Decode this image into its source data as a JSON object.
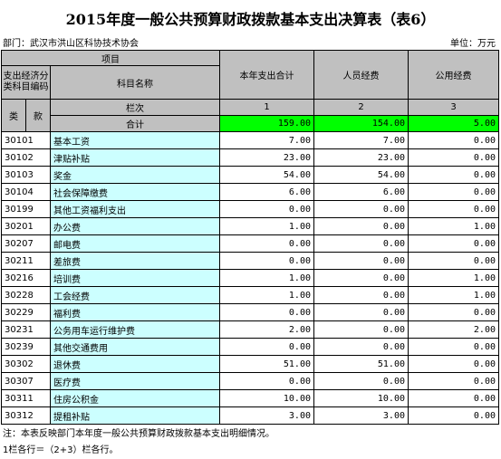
{
  "title": "2015年度一般公共预算财政拨款基本支出决算表（表6）",
  "department": "部门：武汉市洪山区科协技术协会",
  "unit": "单位：万元",
  "header": {
    "project": "项目",
    "code_label": "支出经济分类科目编码",
    "name_label": "科目名称",
    "total": "本年支出合计",
    "personnel": "人员经费",
    "public": "公用经费",
    "lei": "类",
    "kuan": "款",
    "lanci": "栏次",
    "cols": [
      "1",
      "2",
      "3"
    ],
    "sum_label": "合计",
    "sum": [
      "159.00",
      "154.00",
      "5.00"
    ]
  },
  "rows": [
    {
      "code": "30101",
      "name": "基本工资",
      "values": [
        "7.00",
        "7.00",
        "0.00"
      ]
    },
    {
      "code": "30102",
      "name": "津贴补贴",
      "values": [
        "23.00",
        "23.00",
        "0.00"
      ]
    },
    {
      "code": "30103",
      "name": "奖金",
      "values": [
        "54.00",
        "54.00",
        "0.00"
      ]
    },
    {
      "code": "30104",
      "name": "社会保障缴费",
      "values": [
        "6.00",
        "6.00",
        "0.00"
      ]
    },
    {
      "code": "30199",
      "name": "其他工资福利支出",
      "values": [
        "0.00",
        "0.00",
        "0.00"
      ]
    },
    {
      "code": "30201",
      "name": "办公费",
      "values": [
        "1.00",
        "0.00",
        "1.00"
      ]
    },
    {
      "code": "30207",
      "name": "邮电费",
      "values": [
        "0.00",
        "0.00",
        "0.00"
      ]
    },
    {
      "code": "30211",
      "name": "差旅费",
      "values": [
        "0.00",
        "0.00",
        "0.00"
      ]
    },
    {
      "code": "30216",
      "name": "培训费",
      "values": [
        "1.00",
        "0.00",
        "1.00"
      ]
    },
    {
      "code": "30228",
      "name": "工会经费",
      "values": [
        "1.00",
        "0.00",
        "1.00"
      ]
    },
    {
      "code": "30229",
      "name": "福利费",
      "values": [
        "0.00",
        "0.00",
        "0.00"
      ]
    },
    {
      "code": "30231",
      "name": "公务用车运行维护费",
      "values": [
        "2.00",
        "0.00",
        "2.00"
      ]
    },
    {
      "code": "30239",
      "name": "其他交通费用",
      "values": [
        "0.00",
        "0.00",
        "0.00"
      ]
    },
    {
      "code": "30302",
      "name": "退休费",
      "values": [
        "51.00",
        "51.00",
        "0.00"
      ]
    },
    {
      "code": "30307",
      "name": "医疗费",
      "values": [
        "0.00",
        "0.00",
        "0.00"
      ]
    },
    {
      "code": "30311",
      "name": "住房公积金",
      "values": [
        "10.00",
        "10.00",
        "0.00"
      ]
    },
    {
      "code": "30312",
      "name": "提租补贴",
      "values": [
        "3.00",
        "3.00",
        "0.00"
      ]
    }
  ],
  "notes": [
    "注：本表反映部门本年度一般公共预算财政拨款基本支出明细情况。",
    "1栏各行＝（2+3）栏各行。"
  ]
}
